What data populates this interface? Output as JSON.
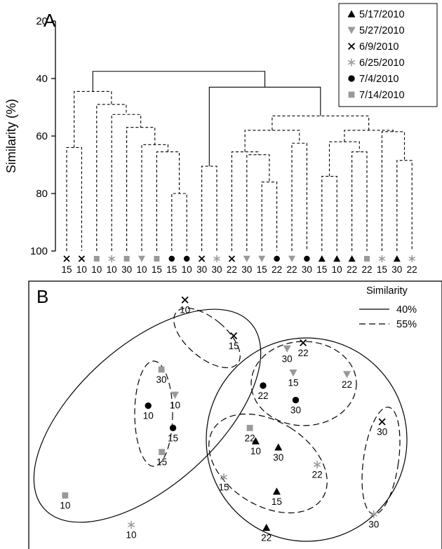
{
  "chart_data": [
    {
      "type": "dendrogram",
      "panel_label": "A",
      "ylabel": "Similarity (%)",
      "ylim": [
        20,
        100
      ],
      "yticks": [
        20,
        40,
        60,
        80,
        100
      ],
      "legend_placement": "top-right",
      "series": [
        {
          "name": "5/17/2010",
          "marker": "triangle-up",
          "color": "#000000"
        },
        {
          "name": "5/27/2010",
          "marker": "triangle-down",
          "color": "#999999"
        },
        {
          "name": "6/9/2010",
          "marker": "cross",
          "color": "#000000"
        },
        {
          "name": "6/25/2010",
          "marker": "asterisk",
          "color": "#999999"
        },
        {
          "name": "7/4/2010",
          "marker": "circle",
          "color": "#000000"
        },
        {
          "name": "7/14/2010",
          "marker": "square",
          "color": "#999999"
        }
      ],
      "leaves": [
        {
          "series": 2,
          "label": "15"
        },
        {
          "series": 2,
          "label": "10"
        },
        {
          "series": 5,
          "label": "10"
        },
        {
          "series": 3,
          "label": "10"
        },
        {
          "series": 5,
          "label": "30"
        },
        {
          "series": 1,
          "label": "10"
        },
        {
          "series": 5,
          "label": "15"
        },
        {
          "series": 4,
          "label": "15"
        },
        {
          "series": 4,
          "label": "10"
        },
        {
          "series": 2,
          "label": "30"
        },
        {
          "series": 3,
          "label": "30"
        },
        {
          "series": 2,
          "label": "22"
        },
        {
          "series": 1,
          "label": "30"
        },
        {
          "series": 1,
          "label": "15"
        },
        {
          "series": 4,
          "label": "22"
        },
        {
          "series": 1,
          "label": "22"
        },
        {
          "series": 4,
          "label": "30"
        },
        {
          "series": 0,
          "label": "15"
        },
        {
          "series": 0,
          "label": "10"
        },
        {
          "series": 0,
          "label": "22"
        },
        {
          "series": 5,
          "label": "22"
        },
        {
          "series": 3,
          "label": "15"
        },
        {
          "series": 0,
          "label": "30"
        },
        {
          "series": 3,
          "label": "22"
        }
      ],
      "merges": [
        {
          "id": "m1",
          "a": 0,
          "b": 1,
          "sim": 64,
          "solid": false
        },
        {
          "id": "m2",
          "a": 7,
          "b": 8,
          "sim": 80,
          "solid": false
        },
        {
          "id": "m3",
          "a": 6,
          "b": "m2",
          "sim": 65.5,
          "solid": false
        },
        {
          "id": "m4",
          "a": 5,
          "b": "m3",
          "sim": 63,
          "solid": false
        },
        {
          "id": "m5",
          "a": 4,
          "b": "m4",
          "sim": 57,
          "solid": false
        },
        {
          "id": "m6",
          "a": 3,
          "b": "m5",
          "sim": 52.5,
          "solid": false
        },
        {
          "id": "m7",
          "a": 2,
          "b": "m6",
          "sim": 49,
          "solid": false
        },
        {
          "id": "m8",
          "a": "m1",
          "b": "m7",
          "sim": 44.5,
          "solid": false
        },
        {
          "id": "m9",
          "a": 9,
          "b": 10,
          "sim": 70.5,
          "solid": false
        },
        {
          "id": "m10",
          "a": 13,
          "b": 14,
          "sim": 76,
          "solid": false
        },
        {
          "id": "m11",
          "a": 12,
          "b": "m10",
          "sim": 66.5,
          "solid": false
        },
        {
          "id": "m12",
          "a": 11,
          "b": "m11",
          "sim": 65.5,
          "solid": false
        },
        {
          "id": "m13",
          "a": 15,
          "b": 16,
          "sim": 62.5,
          "solid": false
        },
        {
          "id": "m14",
          "a": "m12",
          "b": "m13",
          "sim": 58,
          "solid": false
        },
        {
          "id": "m15",
          "a": 17,
          "b": 18,
          "sim": 74,
          "solid": false
        },
        {
          "id": "m16",
          "a": 19,
          "b": 20,
          "sim": 65.5,
          "solid": false
        },
        {
          "id": "m17",
          "a": "m15",
          "b": "m16",
          "sim": 62,
          "solid": false
        },
        {
          "id": "m18",
          "a": 22,
          "b": 23,
          "sim": 68.5,
          "solid": false
        },
        {
          "id": "m19",
          "a": 21,
          "b": "m18",
          "sim": 58.5,
          "solid": false
        },
        {
          "id": "m20",
          "a": "m17",
          "b": "m19",
          "sim": 58,
          "solid": false
        },
        {
          "id": "m21",
          "a": "m14",
          "b": "m20",
          "sim": 53,
          "solid": false
        },
        {
          "id": "m22",
          "a": "m9",
          "b": "m21",
          "sim": 43,
          "solid": true
        },
        {
          "id": "m23",
          "a": "m8",
          "b": "m22",
          "sim": 37.5,
          "solid": true
        }
      ]
    },
    {
      "type": "scatter",
      "panel_label": "B",
      "legend_title": "Similarity",
      "legend_placement": "top-right",
      "legend": [
        {
          "label": "40%",
          "style": "solid"
        },
        {
          "label": "55%",
          "style": "dashed"
        }
      ],
      "points": [
        {
          "series": 2,
          "label": "10",
          "x": 0.378,
          "y": 0.93
        },
        {
          "series": 2,
          "label": "15",
          "x": 0.496,
          "y": 0.796
        },
        {
          "series": 2,
          "label": "22",
          "x": 0.664,
          "y": 0.77
        },
        {
          "series": 1,
          "label": "30",
          "x": 0.625,
          "y": 0.748
        },
        {
          "series": 1,
          "label": "15",
          "x": 0.64,
          "y": 0.658
        },
        {
          "series": 1,
          "label": "22",
          "x": 0.77,
          "y": 0.652
        },
        {
          "series": 4,
          "label": "22",
          "x": 0.567,
          "y": 0.61
        },
        {
          "series": 4,
          "label": "30",
          "x": 0.646,
          "y": 0.556
        },
        {
          "series": 5,
          "label": "30",
          "x": 0.321,
          "y": 0.67
        },
        {
          "series": 4,
          "label": "10",
          "x": 0.289,
          "y": 0.535
        },
        {
          "series": 1,
          "label": "10",
          "x": 0.354,
          "y": 0.575
        },
        {
          "series": 4,
          "label": "15",
          "x": 0.349,
          "y": 0.452
        },
        {
          "series": 5,
          "label": "15",
          "x": 0.322,
          "y": 0.362
        },
        {
          "series": 5,
          "label": "22",
          "x": 0.535,
          "y": 0.452
        },
        {
          "series": 0,
          "label": "10",
          "x": 0.549,
          "y": 0.403
        },
        {
          "series": 0,
          "label": "30",
          "x": 0.604,
          "y": 0.38
        },
        {
          "series": 3,
          "label": "22",
          "x": 0.698,
          "y": 0.315
        },
        {
          "series": 3,
          "label": "15",
          "x": 0.472,
          "y": 0.268
        },
        {
          "series": 0,
          "label": "15",
          "x": 0.6,
          "y": 0.215
        },
        {
          "series": 0,
          "label": "22",
          "x": 0.575,
          "y": 0.08
        },
        {
          "series": 5,
          "label": "10",
          "x": 0.088,
          "y": 0.2
        },
        {
          "series": 3,
          "label": "10",
          "x": 0.248,
          "y": 0.09
        },
        {
          "series": 2,
          "label": "30",
          "x": 0.855,
          "y": 0.475
        },
        {
          "series": 3,
          "label": "30",
          "x": 0.835,
          "y": 0.13
        }
      ],
      "groups": [
        {
          "level": "40%",
          "style": "solid",
          "members": [
            0,
            1,
            8,
            9,
            10,
            11,
            12,
            20,
            21
          ]
        },
        {
          "level": "40%",
          "style": "solid",
          "members": [
            2,
            3,
            4,
            5,
            6,
            7,
            13,
            14,
            15,
            16,
            17,
            18,
            19,
            22,
            23
          ]
        },
        {
          "level": "55%",
          "style": "dashed",
          "members": [
            0,
            1
          ]
        },
        {
          "level": "55%",
          "style": "dashed",
          "members": [
            8,
            9,
            10,
            11,
            12
          ]
        },
        {
          "level": "55%",
          "style": "dashed",
          "members": [
            2,
            3,
            4,
            5,
            6,
            7
          ]
        },
        {
          "level": "55%",
          "style": "dashed",
          "members": [
            13,
            14,
            15,
            16,
            17,
            18,
            19
          ]
        },
        {
          "level": "55%",
          "style": "dashed",
          "members": [
            22,
            23
          ]
        }
      ]
    }
  ]
}
